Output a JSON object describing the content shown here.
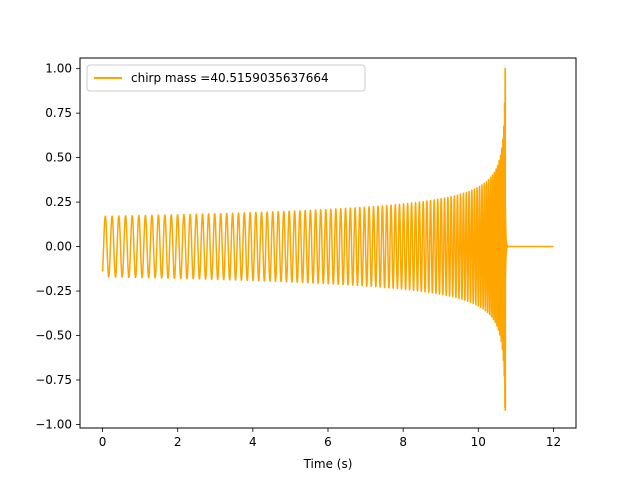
{
  "chart_data": {
    "type": "line",
    "xlabel": "Time (s)",
    "ylabel": "",
    "xlim": [
      -0.6,
      12.6
    ],
    "ylim": [
      -1.02,
      1.06
    ],
    "xticks": [
      0,
      2,
      4,
      6,
      8,
      10,
      12
    ],
    "xtick_labels": [
      "0",
      "2",
      "4",
      "6",
      "8",
      "10",
      "12"
    ],
    "yticks": [
      -1.0,
      -0.75,
      -0.5,
      -0.25,
      0.0,
      0.25,
      0.5,
      0.75,
      1.0
    ],
    "ytick_labels": [
      "−1.00",
      "−0.75",
      "−0.50",
      "−0.25",
      "0.00",
      "0.25",
      "0.50",
      "0.75",
      "1.00"
    ],
    "grid": false,
    "legend_position": "top-left",
    "series": [
      {
        "name": "chirp mass =40.5159035637664",
        "color": "#ffa500",
        "x_start": 0.0,
        "x_end": 12.0,
        "start_value": -0.14,
        "initial_amplitude": 0.17,
        "merger_time": 10.72,
        "ringdown_end": 10.82,
        "peak_max": 1.0,
        "peak_min": -0.92,
        "initial_frequency_hz": 5.5
      }
    ]
  }
}
